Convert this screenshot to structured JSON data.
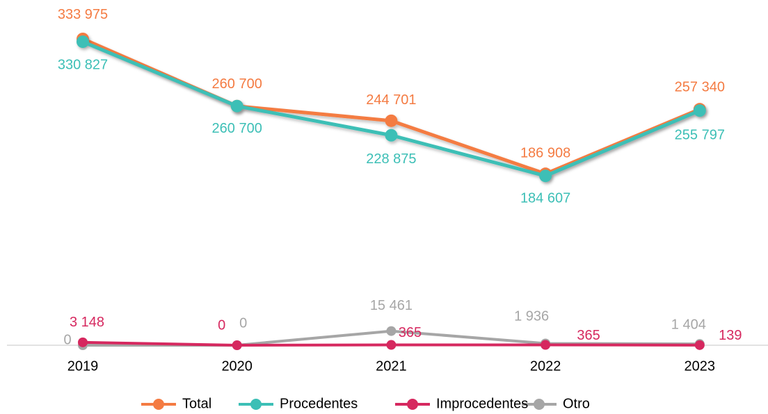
{
  "chart_data": {
    "type": "line",
    "categories": [
      "2019",
      "2020",
      "2021",
      "2022",
      "2023"
    ],
    "ylim": [
      0,
      340000
    ],
    "legend": "bottom",
    "series": [
      {
        "name": "Otro",
        "color": "#a6a6a6",
        "values": [
          0,
          0,
          15461,
          1936,
          1404
        ],
        "value_labels": [
          "0",
          "0",
          "15 461",
          "1 936",
          "1 404"
        ]
      },
      {
        "name": "Improcedentes",
        "color": "#d6285f",
        "values": [
          3148,
          0,
          365,
          365,
          139
        ],
        "value_labels": [
          "3 148",
          "0",
          "365",
          "365",
          "139"
        ]
      },
      {
        "name": "Total",
        "color": "#f47b42",
        "values": [
          333975,
          260700,
          244701,
          186908,
          257340
        ],
        "value_labels": [
          "333 975",
          "260 700",
          "244 701",
          "186 908",
          "257 340"
        ]
      },
      {
        "name": "Procedentes",
        "color": "#3cbfb6",
        "values": [
          330827,
          260700,
          228875,
          184607,
          255797
        ],
        "value_labels": [
          "330 827",
          "260 700",
          "228 875",
          "184 607",
          "255 797"
        ]
      }
    ]
  }
}
